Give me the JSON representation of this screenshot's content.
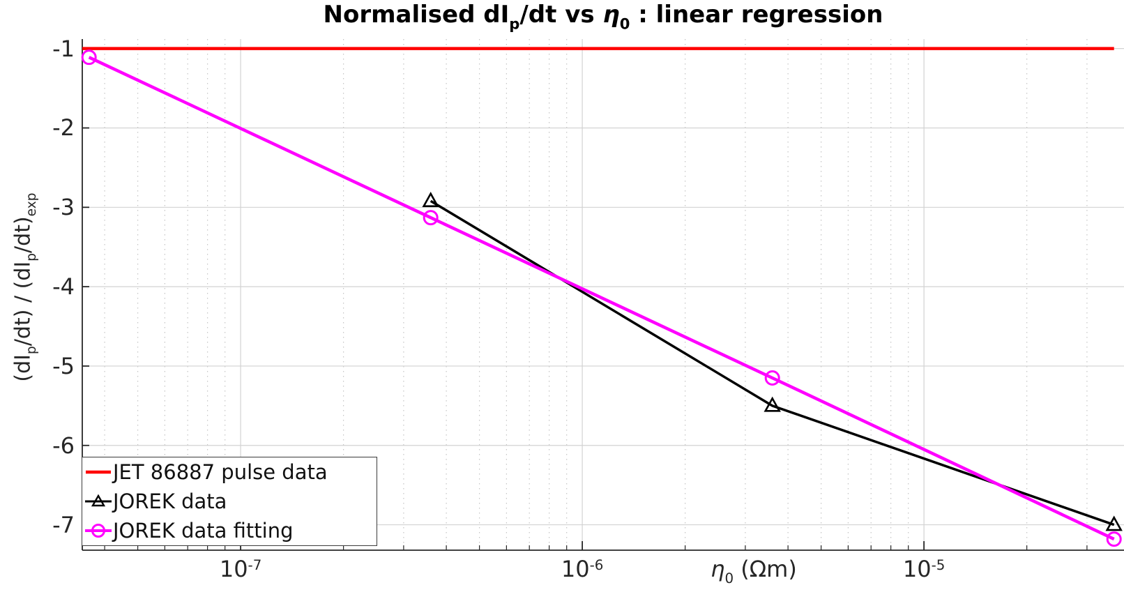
{
  "figure": {
    "background": "#ffffff"
  },
  "chart_data": {
    "type": "line",
    "title": "Normalised dI_{p}/dt vs η_{0} : linear regression",
    "xlabel": "η_{0} (Ωm)",
    "ylabel": "(dI_{p}/dt) / (dI_{p}/dt)_{exp}",
    "x_scale": "log",
    "xlim": [
      3.44e-08,
      3.85e-05
    ],
    "ylim": [
      -7.32,
      -0.88
    ],
    "x_major_ticks": [
      1e-07,
      1e-06,
      1e-05
    ],
    "x_major_tick_labels": [
      "10^{-7}",
      "10^{-6}",
      "10^{-5}"
    ],
    "y_ticks": [
      -1,
      -2,
      -3,
      -4,
      -5,
      -6,
      -7
    ],
    "y_tick_labels": [
      "-1",
      "-2",
      "-3",
      "-4",
      "-5",
      "-6",
      "-7"
    ],
    "grid": {
      "horizontal": "solid",
      "vertical_major": "solid",
      "vertical_minor": "dotted"
    },
    "legend_position": "southwest",
    "series": [
      {
        "name": "JET 86887 pulse data",
        "color": "#ff0000",
        "line_width": 4.5,
        "marker": "none",
        "x": [
          3.44e-08,
          3.6e-05
        ],
        "y": [
          -1,
          -1
        ]
      },
      {
        "name": "JOREK data",
        "color": "#000000",
        "line_width": 3.5,
        "marker": "triangle",
        "x": [
          3.6e-07,
          3.6e-06,
          3.6e-05
        ],
        "y": [
          -2.92,
          -5.5,
          -7.0
        ]
      },
      {
        "name": "JOREK data fitting",
        "color": "#ff00ff",
        "line_width": 4.5,
        "marker": "circle",
        "x": [
          3.6e-08,
          3.6e-07,
          3.6e-06,
          3.6e-05
        ],
        "y": [
          -1.11,
          -3.13,
          -5.15,
          -7.18
        ]
      }
    ],
    "colors": {
      "axis": "#262626",
      "text": "#262626",
      "grid_solid": "#d2d2d2",
      "grid_dotted": "#c4c4c4",
      "legend_border": "#3b3b3b"
    }
  }
}
